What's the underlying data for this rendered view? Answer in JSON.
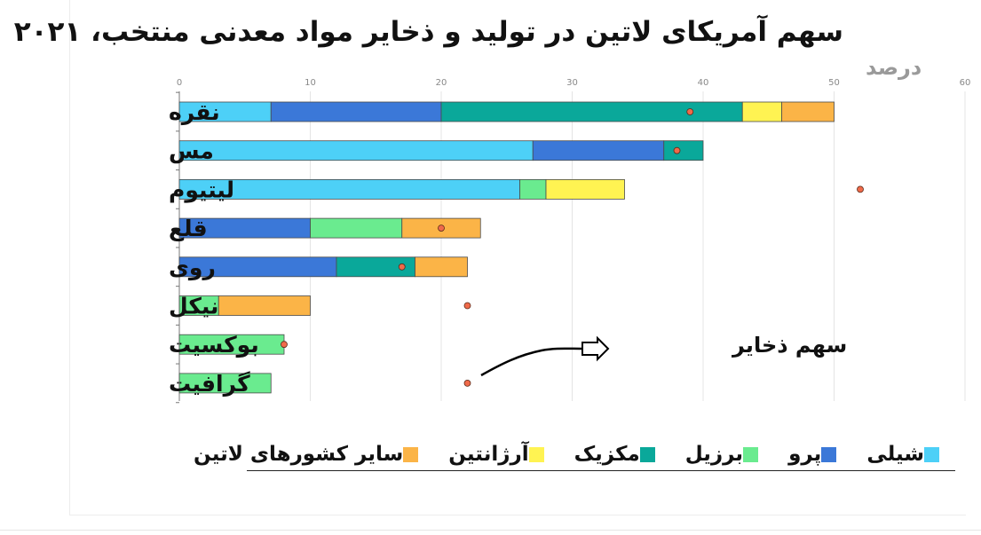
{
  "chart_data": {
    "type": "bar",
    "orientation": "horizontal",
    "stacked": true,
    "title": "سهم آمریکای لاتین در تولید و ذخایر مواد معدنی منتخب، ۲۰۲۱",
    "unit_label": "درصد",
    "xlim": [
      0,
      60
    ],
    "xticks": [
      0,
      10,
      20,
      30,
      40,
      50,
      60
    ],
    "grid": true,
    "legend_position": "bottom",
    "categories": [
      "نقره",
      "مس",
      "لیتیوم",
      "قلع",
      "روی",
      "نیکل",
      "بوکسیت",
      "گرافیت"
    ],
    "series": [
      {
        "name": "شیلی",
        "color": "#4dd0f7",
        "values": [
          7,
          27,
          26,
          0,
          0,
          0,
          0,
          0
        ]
      },
      {
        "name": "پرو",
        "color": "#3b78d8",
        "values": [
          13,
          10,
          0,
          10,
          12,
          0,
          0,
          0
        ]
      },
      {
        "name": "برزیل",
        "color": "#6aeb8f",
        "values": [
          0,
          0,
          2,
          7,
          0,
          3,
          8,
          7
        ]
      },
      {
        "name": "مکزیک",
        "color": "#0aa89a",
        "values": [
          23,
          3,
          0,
          0,
          6,
          0,
          0,
          0
        ]
      },
      {
        "name": "آرژانتین",
        "color": "#fff352",
        "values": [
          3,
          0,
          6,
          0,
          0,
          0,
          0,
          0
        ]
      },
      {
        "name": "سایر کشورهای لاتین",
        "color": "#fbb447",
        "values": [
          4,
          0,
          0,
          6,
          4,
          7,
          0,
          0
        ]
      }
    ],
    "reserves_share": {
      "name": "سهم ذخایر",
      "color": "#f06a4a",
      "values": [
        39,
        38,
        52,
        20,
        17,
        22,
        8,
        22
      ]
    },
    "annotation": {
      "text": "سهم ذخایر"
    }
  }
}
